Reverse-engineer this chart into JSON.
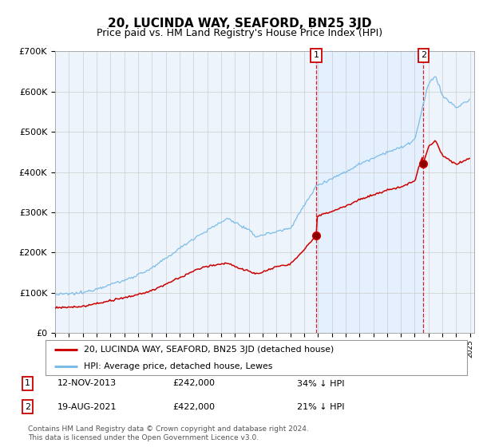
{
  "title": "20, LUCINDA WAY, SEAFORD, BN25 3JD",
  "subtitle": "Price paid vs. HM Land Registry's House Price Index (HPI)",
  "red_label": "20, LUCINDA WAY, SEAFORD, BN25 3JD (detached house)",
  "blue_label": "HPI: Average price, detached house, Lewes",
  "point1_date": "12-NOV-2013",
  "point1_price": 242000,
  "point1_label": "34% ↓ HPI",
  "point2_date": "19-AUG-2021",
  "point2_price": 422000,
  "point2_label": "21% ↓ HPI",
  "footnote": "Contains HM Land Registry data © Crown copyright and database right 2024.\nThis data is licensed under the Open Government Licence v3.0.",
  "ylim": [
    0,
    700000
  ],
  "yticks": [
    0,
    100000,
    200000,
    300000,
    400000,
    500000,
    600000,
    700000
  ],
  "ytick_labels": [
    "£0",
    "£100K",
    "£200K",
    "£300K",
    "£400K",
    "£500K",
    "£600K",
    "£700K"
  ],
  "blue_color": "#7bbde8",
  "blue_fill": "#ddeeff",
  "red_color": "#cc0000",
  "dashed_color": "#cc0000",
  "plot_bg": "#eef4fb",
  "grid_color": "#cccccc",
  "title_fontsize": 11,
  "subtitle_fontsize": 9,
  "axis_fontsize": 8,
  "footnote_fontsize": 6.5,
  "t1": 2013.875,
  "t2": 2021.625
}
